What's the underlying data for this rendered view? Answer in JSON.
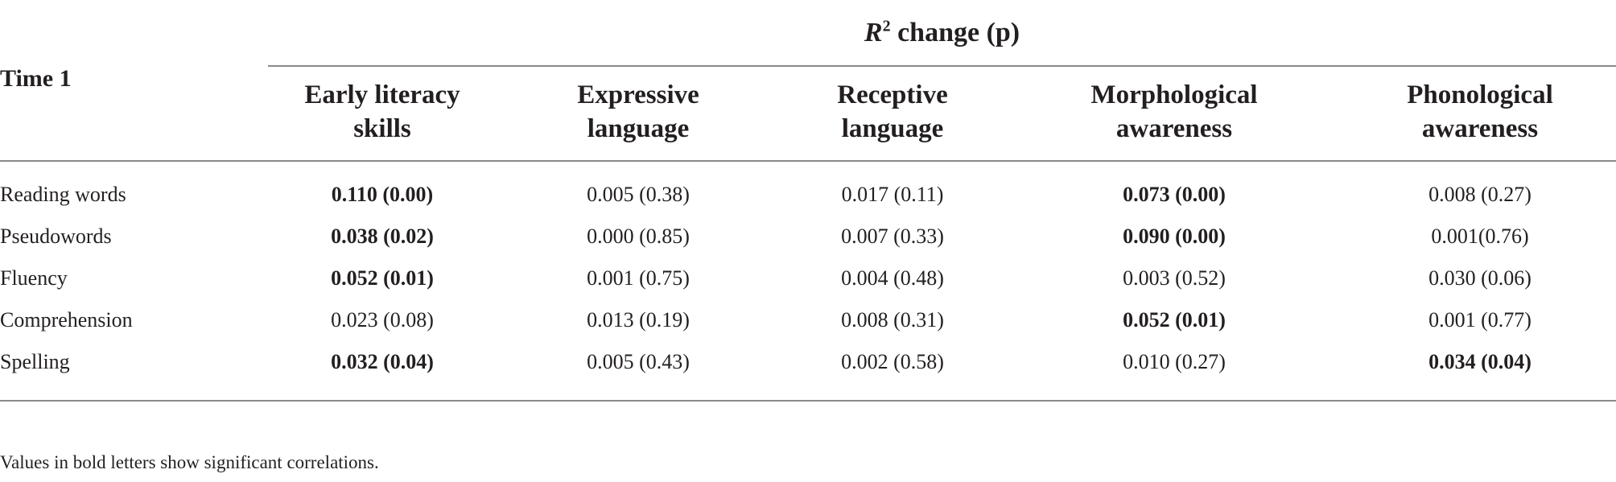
{
  "table": {
    "spanner": {
      "r_symbol": "R",
      "superscript": "2",
      "rest": " change (p)"
    },
    "stub_header": "Time 1",
    "columns": [
      {
        "line1": "Early literacy",
        "line2": "skills"
      },
      {
        "line1": "Expressive",
        "line2": "language"
      },
      {
        "line1": "Receptive",
        "line2": "language"
      },
      {
        "line1": "Morphological",
        "line2": "awareness"
      },
      {
        "line1": "Phonological",
        "line2": "awareness"
      }
    ],
    "rows": [
      {
        "label": "Reading words",
        "cells": [
          {
            "text": "0.110 (0.00)",
            "bold": true
          },
          {
            "text": "0.005 (0.38)",
            "bold": false
          },
          {
            "text": "0.017 (0.11)",
            "bold": false
          },
          {
            "text": "0.073 (0.00)",
            "bold": true
          },
          {
            "text": "0.008 (0.27)",
            "bold": false
          }
        ]
      },
      {
        "label": "Pseudowords",
        "cells": [
          {
            "text": "0.038 (0.02)",
            "bold": true
          },
          {
            "text": "0.000 (0.85)",
            "bold": false
          },
          {
            "text": "0.007 (0.33)",
            "bold": false
          },
          {
            "text": "0.090 (0.00)",
            "bold": true
          },
          {
            "text": "0.001(0.76)",
            "bold": false
          }
        ]
      },
      {
        "label": "Fluency",
        "cells": [
          {
            "text": "0.052 (0.01)",
            "bold": true
          },
          {
            "text": "0.001 (0.75)",
            "bold": false
          },
          {
            "text": "0.004 (0.48)",
            "bold": false
          },
          {
            "text": "0.003 (0.52)",
            "bold": false
          },
          {
            "text": "0.030 (0.06)",
            "bold": false
          }
        ]
      },
      {
        "label": "Comprehension",
        "cells": [
          {
            "text": "0.023 (0.08)",
            "bold": false
          },
          {
            "text": "0.013 (0.19)",
            "bold": false
          },
          {
            "text": "0.008 (0.31)",
            "bold": false
          },
          {
            "text": "0.052 (0.01)",
            "bold": true
          },
          {
            "text": "0.001 (0.77)",
            "bold": false
          }
        ]
      },
      {
        "label": "Spelling",
        "cells": [
          {
            "text": "0.032 (0.04)",
            "bold": true
          },
          {
            "text": "0.005 (0.43)",
            "bold": false
          },
          {
            "text": "0.002 (0.58)",
            "bold": false
          },
          {
            "text": "0.010 (0.27)",
            "bold": false
          },
          {
            "text": "0.034 (0.04)",
            "bold": true
          }
        ]
      }
    ],
    "footnote": "Values in bold letters show significant correlations."
  }
}
